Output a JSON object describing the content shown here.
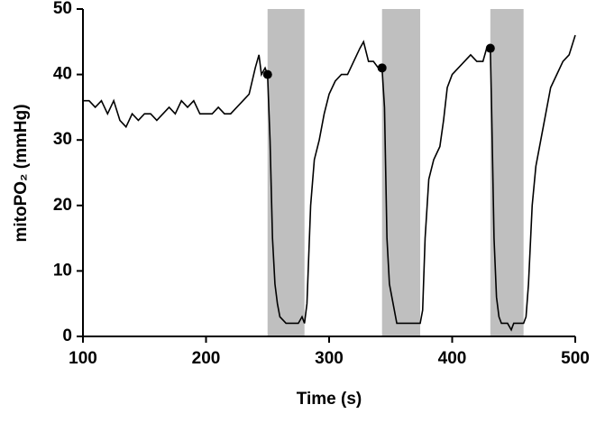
{
  "chart_data": {
    "type": "line",
    "xlabel": "Time (s)",
    "ylabel": "mitoPO₂ (mmHg)",
    "x": [
      100,
      105,
      110,
      115,
      120,
      125,
      130,
      135,
      140,
      145,
      150,
      155,
      160,
      165,
      170,
      175,
      180,
      185,
      190,
      195,
      200,
      205,
      210,
      215,
      220,
      225,
      230,
      235,
      240,
      243,
      245,
      248,
      250,
      252,
      254,
      256,
      258,
      260,
      265,
      270,
      275,
      278,
      280,
      282,
      285,
      288,
      292,
      296,
      300,
      305,
      310,
      315,
      320,
      325,
      328,
      332,
      336,
      340,
      343,
      345,
      347,
      349,
      352,
      355,
      360,
      365,
      370,
      374,
      376,
      378,
      381,
      385,
      390,
      393,
      396,
      400,
      405,
      410,
      415,
      420,
      425,
      428,
      431,
      432,
      434,
      436,
      438,
      440,
      445,
      448,
      450,
      455,
      458,
      460,
      462,
      465,
      468,
      472,
      476,
      480,
      485,
      490,
      495,
      500
    ],
    "series": [
      {
        "color": "#000000",
        "values": [
          36,
          36,
          35,
          36,
          34,
          36,
          33,
          32,
          34,
          33,
          34,
          34,
          33,
          34,
          35,
          34,
          36,
          35,
          36,
          34,
          34,
          34,
          35,
          34,
          34,
          35,
          36,
          37,
          41,
          43,
          40,
          41,
          40,
          30,
          15,
          8,
          5,
          3,
          2,
          2,
          2,
          3,
          2,
          5,
          20,
          27,
          30,
          34,
          37,
          39,
          40,
          40,
          42,
          44,
          45,
          42,
          42,
          41,
          41,
          35,
          15,
          8,
          5,
          2,
          2,
          2,
          2,
          2,
          4,
          15,
          24,
          27,
          29,
          33,
          38,
          40,
          41,
          42,
          43,
          42,
          42,
          44,
          44,
          35,
          15,
          6,
          3,
          2,
          2,
          1,
          2,
          2,
          2,
          3,
          8,
          20,
          26,
          30,
          34,
          38,
          40,
          42,
          43,
          46
        ]
      }
    ],
    "shaded_regions": [
      [
        250,
        280
      ],
      [
        343,
        374
      ],
      [
        431,
        458
      ]
    ],
    "shade_color": "#bfbfbf",
    "markers": {
      "x": [
        250,
        343,
        431
      ],
      "y": [
        40,
        41,
        44
      ]
    },
    "xlim": [
      100,
      500
    ],
    "ylim": [
      0,
      50
    ],
    "xticks": [
      100,
      200,
      300,
      400,
      500
    ],
    "yticks": [
      0,
      10,
      20,
      30,
      40,
      50
    ]
  }
}
